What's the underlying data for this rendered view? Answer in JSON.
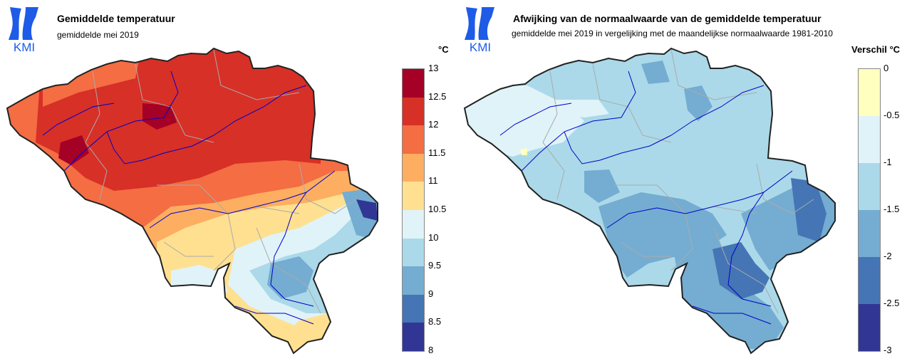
{
  "left_panel": {
    "logo_text": "KMI",
    "title": "Gemiddelde temperatuur",
    "subtitle": "gemiddelde mei 2019",
    "legend_unit": "°C",
    "legend_ticks": [
      "13",
      "12.5",
      "12",
      "11.5",
      "11",
      "10.5",
      "10",
      "9.5",
      "9",
      "8.5",
      "8"
    ],
    "legend_colors": [
      "#a50026",
      "#d73027",
      "#f46d43",
      "#fdae61",
      "#fee090",
      "#e0f3f8",
      "#abd9e9",
      "#74add1",
      "#4575b4",
      "#313695"
    ]
  },
  "right_panel": {
    "logo_text": "KMI",
    "title": "Afwijking van de normaalwaarde van de gemiddelde temperatuur",
    "subtitle": "gemiddelde mei 2019 in vergelijking met de maandelijkse normaalwaarde 1981-2010",
    "legend_unit": "Verschil °C",
    "legend_ticks": [
      "0",
      "-0.5",
      "-1",
      "-1.5",
      "-2",
      "-2.5",
      "-3"
    ],
    "legend_colors": [
      "#ffffbf",
      "#e0f3f8",
      "#abd9e9",
      "#74add1",
      "#4575b4",
      "#313695"
    ]
  },
  "colors": {
    "logo_blue": "#1e5be6",
    "border": "#222222",
    "rivers": "#0000cc",
    "provinces": "#aaaaaa"
  }
}
